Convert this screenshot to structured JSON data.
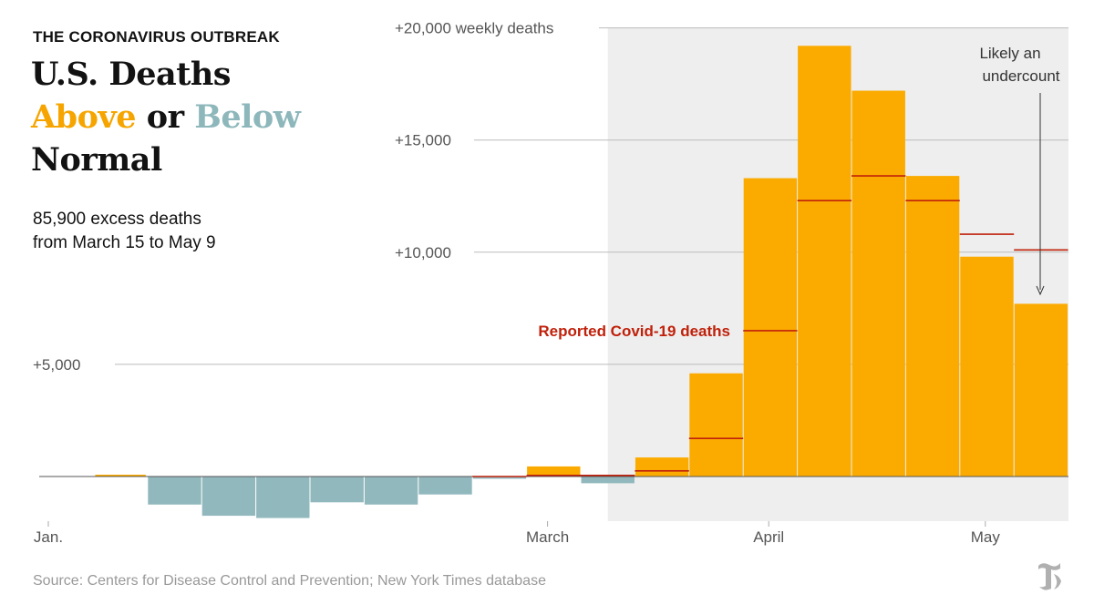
{
  "header": {
    "kicker": "THE CORONAVIRUS OUTBREAK",
    "title_line1": "U.S. Deaths",
    "title_above": "Above",
    "title_or": " or ",
    "title_below": "Below",
    "title_line3": "Normal",
    "subtitle_line1": "85,900 excess deaths",
    "subtitle_line2": "from March 15 to May 9"
  },
  "source": "Source: Centers for Disease Control and Prevention; New York Times database",
  "logo": {
    "icon": "nyt-t-logo-icon"
  },
  "colors": {
    "above": "#FBAB00",
    "below": "#91B8BD",
    "covid_line": "#C0210B",
    "highlight_bg": "#EEEEEE",
    "grid": "#BBBBBB",
    "axis_text": "#555555",
    "title_above": "#F6A500",
    "title_below": "#8DB7BB"
  },
  "chart_data": {
    "type": "bar",
    "ylabel": "weekly deaths",
    "ylim": [
      -2000,
      20000
    ],
    "y_ticks": [
      {
        "value": 5000,
        "label": "+5,000"
      },
      {
        "value": 10000,
        "label": "+10,000"
      },
      {
        "value": 15000,
        "label": "+15,000"
      },
      {
        "value": 20000,
        "label": "+20,000"
      }
    ],
    "x_ticks": [
      {
        "week": 0,
        "label": "Jan."
      },
      {
        "week": 9,
        "label": "March"
      },
      {
        "week": 13,
        "label": "April"
      },
      {
        "week": 17,
        "label": "May"
      }
    ],
    "highlight_start_week": 10.5,
    "excess_deaths": [
      0,
      50,
      -1250,
      -1750,
      -1850,
      -1150,
      -1250,
      -800,
      -100,
      450,
      -300,
      850,
      4600,
      13300,
      19200,
      17200,
      13400,
      9800,
      7700
    ],
    "reported_covid_deaths": [
      null,
      null,
      null,
      null,
      null,
      null,
      null,
      null,
      0,
      50,
      50,
      250,
      1700,
      6500,
      12300,
      13400,
      12300,
      10800,
      10100
    ],
    "annotations": [
      {
        "text": "Reported Covid-19 deaths",
        "week": 13
      },
      {
        "text_line1": "Likely an",
        "text_line2": "undercount",
        "week": 18
      }
    ]
  }
}
